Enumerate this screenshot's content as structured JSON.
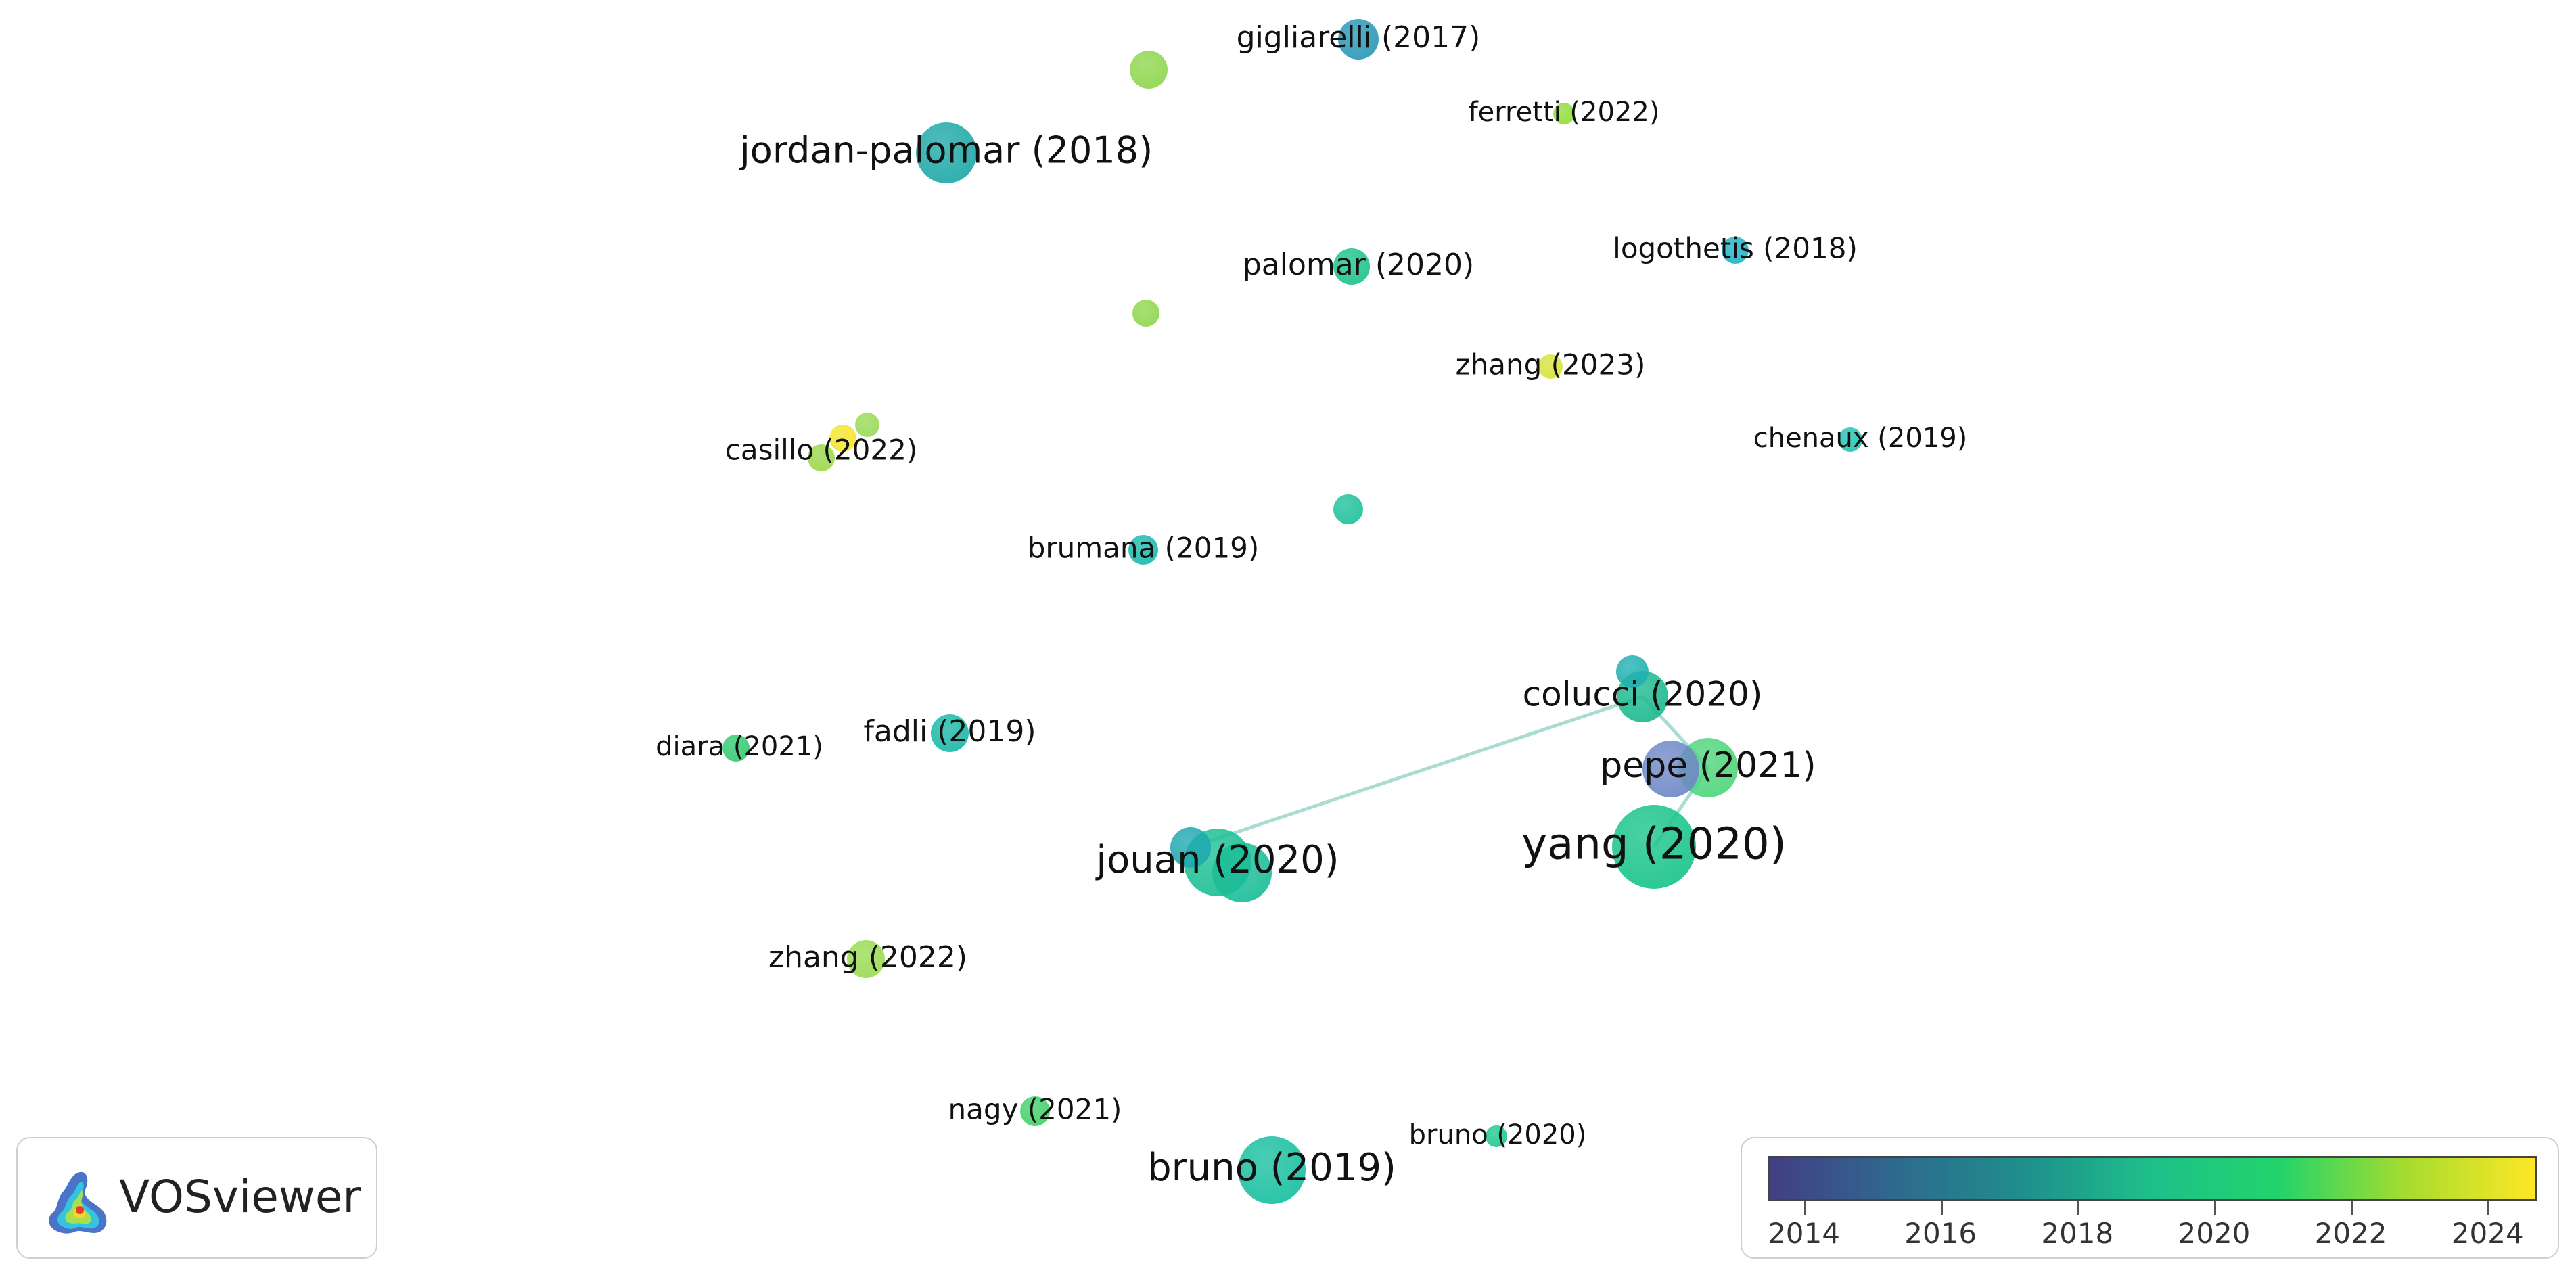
{
  "brand": {
    "name": "VOSviewer"
  },
  "legend": {
    "min_year": 2013.5,
    "max_year": 2024.7,
    "ticks": [
      "2014",
      "2016",
      "2018",
      "2020",
      "2022",
      "2024"
    ],
    "gradient": [
      "#433e85",
      "#2e6a8e",
      "#1f8f8c",
      "#1ec08a",
      "#22d46a",
      "#a8dc2e",
      "#fde725"
    ]
  },
  "links": [
    {
      "from": "colucci (2020)",
      "to": "pepe (2021)"
    },
    {
      "from": "pepe (2021)",
      "to": "yang (2020)"
    },
    {
      "from": "unlabeled-7",
      "to": "colucci (2020)"
    }
  ],
  "nodes": [
    {
      "label": "jordan-palomar (2018)",
      "year": 2018.2,
      "color": "#1fa8a8"
    },
    {
      "label": "gigliarelli (2017)",
      "year": 2017.4,
      "color": "#2a98b4"
    },
    {
      "label": "ferretti (2022)",
      "year": 2022.0,
      "color": "#90dd3a"
    },
    {
      "label": "palomar (2020)",
      "year": 2020.0,
      "color": "#1ec38a"
    },
    {
      "label": "logothetis (2018)",
      "year": 2018.0,
      "color": "#20b4c4"
    },
    {
      "label": "zhang (2023)",
      "year": 2023.0,
      "color": "#d6e33c"
    },
    {
      "label": "chenaux (2019)",
      "year": 2019.0,
      "color": "#22c4b4"
    },
    {
      "label": "casillo (2022)",
      "year": 2022.0,
      "color": "#9ad84a"
    },
    {
      "label": "brumana (2019)",
      "year": 2019.0,
      "color": "#1db8ac"
    },
    {
      "label": "colucci (2020)",
      "year": 2020.0,
      "color": "#1db98f"
    },
    {
      "label": "pepe (2021)",
      "year": 2021.0,
      "color": "#4fd67c"
    },
    {
      "label": "yang (2020)",
      "year": 2020.0,
      "color": "#19c48a"
    },
    {
      "label": "diara (2021)",
      "year": 2021.0,
      "color": "#33cc72"
    },
    {
      "label": "fadli (2019)",
      "year": 2019.0,
      "color": "#1ab8a8"
    },
    {
      "label": "jouan (2020)",
      "year": 2020.0,
      "color": "#1cbf94"
    },
    {
      "label": "zhang (2022)",
      "year": 2022.0,
      "color": "#9adb52"
    },
    {
      "label": "nagy (2021)",
      "year": 2021.0,
      "color": "#45d06a"
    },
    {
      "label": "bruno (2019)",
      "year": 2019.0,
      "color": "#18bfa0"
    },
    {
      "label": "bruno (2020)",
      "year": 2020.0,
      "color": "#1ec98c"
    },
    {
      "label": "",
      "year": 2022.0,
      "color": "#8fd64e"
    },
    {
      "label": "",
      "year": 2022.0,
      "color": "#8fd64e"
    },
    {
      "label": "",
      "year": 2020.0,
      "color": "#1dc19c"
    },
    {
      "label": "",
      "year": 2023.8,
      "color": "#f4e52c"
    },
    {
      "label": "",
      "year": 2022.0,
      "color": "#98db56"
    },
    {
      "label": "",
      "year": 2014.8,
      "color": "#6f88c6"
    },
    {
      "label": "",
      "year": 2018.5,
      "color": "#1fa9b0"
    },
    {
      "label": "",
      "year": 2018.5,
      "color": "#1fb0b0"
    },
    {
      "label": "",
      "year": 2020.0,
      "color": "#1bbd98"
    }
  ]
}
